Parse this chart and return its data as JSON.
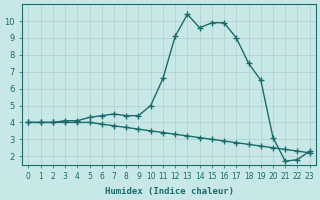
{
  "xlabel": "Humidex (Indice chaleur)",
  "background_color": "#c8e8e8",
  "grid_color": "#b0cece",
  "line_color": "#1a6b6b",
  "series1_x": [
    0,
    1,
    2,
    3,
    4,
    5,
    6,
    7,
    8,
    9,
    10,
    11,
    12,
    13,
    14,
    15,
    16,
    17,
    18,
    19,
    20,
    21,
    22,
    23
  ],
  "series1_y": [
    4.0,
    4.0,
    4.0,
    4.1,
    4.1,
    4.3,
    4.4,
    4.5,
    4.4,
    4.4,
    5.0,
    6.6,
    9.1,
    10.4,
    9.6,
    9.9,
    9.9,
    9.0,
    7.5,
    6.5,
    3.1,
    1.7,
    1.8,
    2.3
  ],
  "series2_x": [
    0,
    1,
    2,
    3,
    4,
    5,
    6,
    7,
    8,
    9,
    10,
    11,
    12,
    13,
    14,
    15,
    16,
    17,
    18,
    19,
    20,
    21,
    22,
    23
  ],
  "series2_y": [
    4.0,
    4.0,
    4.0,
    4.0,
    4.0,
    4.0,
    3.9,
    3.8,
    3.7,
    3.6,
    3.5,
    3.4,
    3.3,
    3.2,
    3.1,
    3.0,
    2.9,
    2.8,
    2.7,
    2.6,
    2.5,
    2.4,
    2.3,
    2.2
  ],
  "xlim": [
    -0.5,
    23.5
  ],
  "ylim": [
    1.5,
    11.0
  ],
  "yticks": [
    2,
    3,
    4,
    5,
    6,
    7,
    8,
    9,
    10
  ],
  "xticks": [
    0,
    1,
    2,
    3,
    4,
    5,
    6,
    7,
    8,
    9,
    10,
    11,
    12,
    13,
    14,
    15,
    16,
    17,
    18,
    19,
    20,
    21,
    22,
    23
  ]
}
